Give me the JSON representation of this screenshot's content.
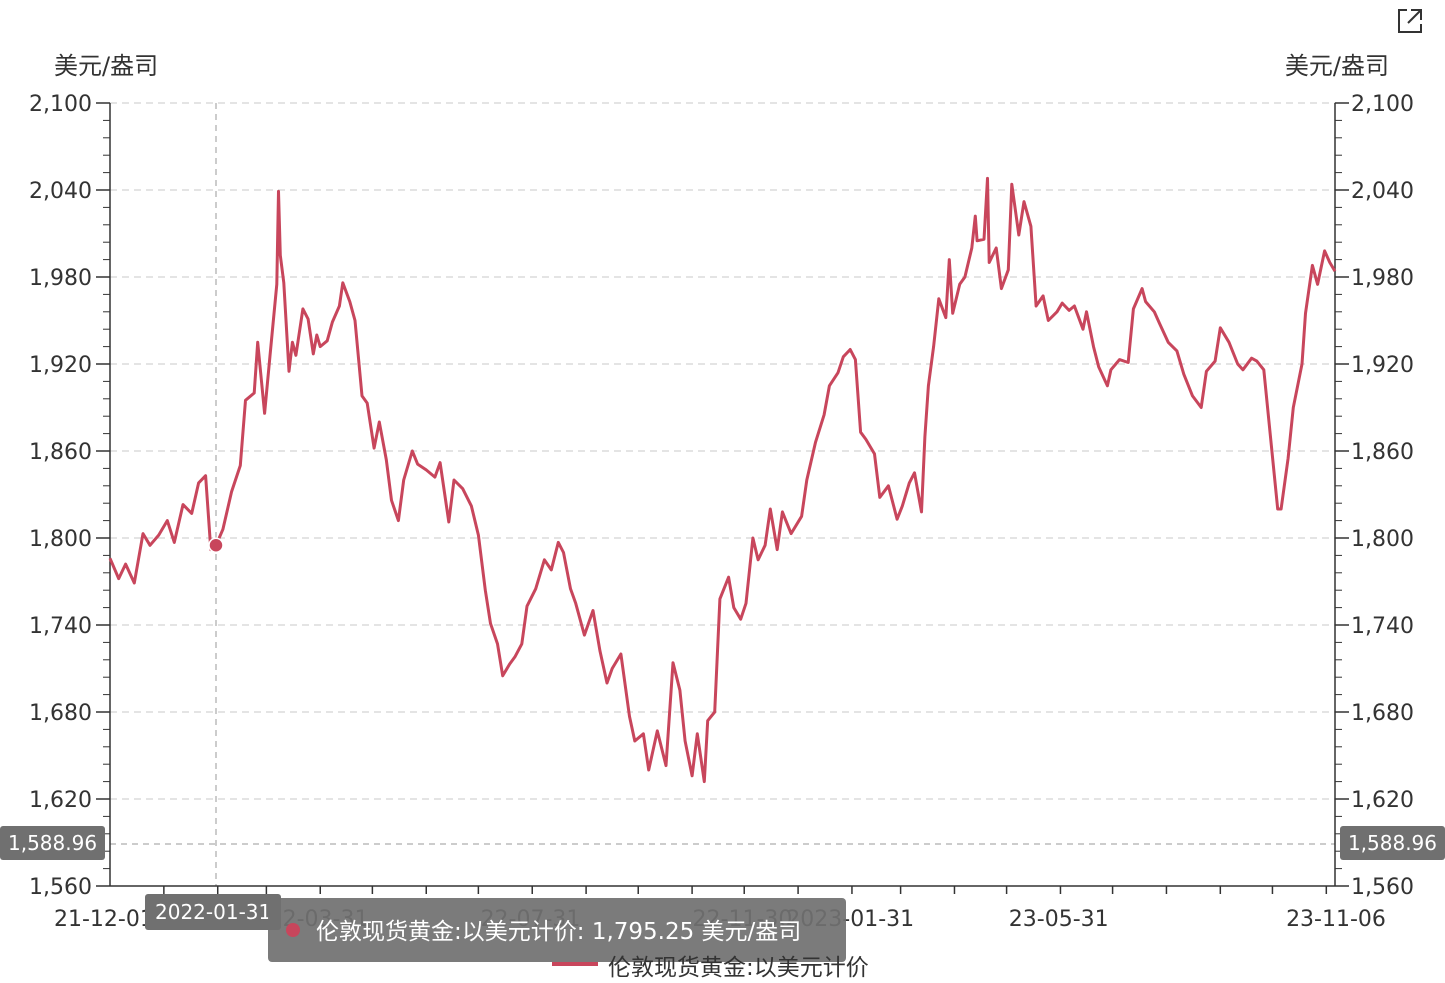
{
  "header": {
    "unit_left": "美元/盎司",
    "unit_right": "美元/盎司",
    "export_icon": "external-link-icon"
  },
  "tooltip": {
    "date": "2022-01-31",
    "series_name": "伦敦现货黄金:以美元计价",
    "value_text": "1,795.25",
    "unit": "美元/盎司"
  },
  "axis_pointer": {
    "value_label": "1,588.96"
  },
  "legend": {
    "label": "伦敦现货黄金:以美元计价"
  },
  "colors": {
    "series": "#c8465c",
    "grid": "#dcdcdc",
    "axis": "#333333"
  },
  "chart_data": {
    "type": "line",
    "title": "",
    "xlabel": "",
    "ylabel": "美元/盎司",
    "ylim": [
      1560,
      2100
    ],
    "y_ticks": [
      1560,
      1620,
      1680,
      1740,
      1800,
      1860,
      1920,
      1980,
      2040,
      2100
    ],
    "y_tick_labels": [
      "1,560",
      "1,620",
      "1,680",
      "1,740",
      "1,800",
      "1,860",
      "1,920",
      "1,980",
      "2,040",
      "2,100"
    ],
    "x_tick_labels": [
      {
        "date": "2021-12-01",
        "label": "21-12-01"
      },
      {
        "date": "2022-03-31",
        "label": "22-03-31"
      },
      {
        "date": "2022-07-31",
        "label": "22-07-31"
      },
      {
        "date": "2022-11-30",
        "label": "22-11-30"
      },
      {
        "date": "2023-01-31",
        "label": "2023-01-31"
      },
      {
        "date": "2023-05-31",
        "label": "23-05-31"
      },
      {
        "date": "2023-11-06",
        "label": "23-11-06"
      }
    ],
    "x_range": [
      "2021-12-01",
      "2023-11-06"
    ],
    "axis_pointer": {
      "date": "2022-01-31",
      "value": 1588.96
    },
    "series": [
      {
        "name": "伦敦现货黄金:以美元计价",
        "points": [
          [
            "2021-12-01",
            1786
          ],
          [
            "2021-12-06",
            1772
          ],
          [
            "2021-12-10",
            1782
          ],
          [
            "2021-12-15",
            1769
          ],
          [
            "2021-12-20",
            1803
          ],
          [
            "2021-12-24",
            1795
          ],
          [
            "2021-12-29",
            1802
          ],
          [
            "2022-01-03",
            1812
          ],
          [
            "2022-01-07",
            1797
          ],
          [
            "2022-01-12",
            1823
          ],
          [
            "2022-01-17",
            1817
          ],
          [
            "2022-01-21",
            1838
          ],
          [
            "2022-01-25",
            1843
          ],
          [
            "2022-01-28",
            1792
          ],
          [
            "2022-01-31",
            1795
          ],
          [
            "2022-02-04",
            1806
          ],
          [
            "2022-02-09",
            1832
          ],
          [
            "2022-02-14",
            1850
          ],
          [
            "2022-02-17",
            1895
          ],
          [
            "2022-02-22",
            1900
          ],
          [
            "2022-02-24",
            1935
          ],
          [
            "2022-02-28",
            1886
          ],
          [
            "2022-03-03",
            1925
          ],
          [
            "2022-03-07",
            1975
          ],
          [
            "2022-03-08",
            2039
          ],
          [
            "2022-03-09",
            1995
          ],
          [
            "2022-03-11",
            1976
          ],
          [
            "2022-03-14",
            1915
          ],
          [
            "2022-03-16",
            1935
          ],
          [
            "2022-03-18",
            1926
          ],
          [
            "2022-03-22",
            1958
          ],
          [
            "2022-03-25",
            1951
          ],
          [
            "2022-03-28",
            1927
          ],
          [
            "2022-03-30",
            1940
          ],
          [
            "2022-04-01",
            1932
          ],
          [
            "2022-04-05",
            1936
          ],
          [
            "2022-04-08",
            1949
          ],
          [
            "2022-04-12",
            1960
          ],
          [
            "2022-04-14",
            1976
          ],
          [
            "2022-04-18",
            1963
          ],
          [
            "2022-04-21",
            1950
          ],
          [
            "2022-04-25",
            1898
          ],
          [
            "2022-04-28",
            1893
          ],
          [
            "2022-05-02",
            1862
          ],
          [
            "2022-05-05",
            1880
          ],
          [
            "2022-05-09",
            1854
          ],
          [
            "2022-05-12",
            1826
          ],
          [
            "2022-05-16",
            1812
          ],
          [
            "2022-05-19",
            1840
          ],
          [
            "2022-05-24",
            1860
          ],
          [
            "2022-05-27",
            1851
          ],
          [
            "2022-06-01",
            1847
          ],
          [
            "2022-06-06",
            1842
          ],
          [
            "2022-06-09",
            1852
          ],
          [
            "2022-06-14",
            1811
          ],
          [
            "2022-06-17",
            1840
          ],
          [
            "2022-06-22",
            1834
          ],
          [
            "2022-06-27",
            1822
          ],
          [
            "2022-07-01",
            1802
          ],
          [
            "2022-07-05",
            1764
          ],
          [
            "2022-07-08",
            1741
          ],
          [
            "2022-07-12",
            1727
          ],
          [
            "2022-07-15",
            1705
          ],
          [
            "2022-07-19",
            1713
          ],
          [
            "2022-07-22",
            1718
          ],
          [
            "2022-07-26",
            1727
          ],
          [
            "2022-07-29",
            1753
          ],
          [
            "2022-08-03",
            1765
          ],
          [
            "2022-08-08",
            1785
          ],
          [
            "2022-08-12",
            1778
          ],
          [
            "2022-08-16",
            1797
          ],
          [
            "2022-08-19",
            1790
          ],
          [
            "2022-08-23",
            1765
          ],
          [
            "2022-08-26",
            1755
          ],
          [
            "2022-08-31",
            1733
          ],
          [
            "2022-09-05",
            1750
          ],
          [
            "2022-09-09",
            1722
          ],
          [
            "2022-09-13",
            1700
          ],
          [
            "2022-09-16",
            1710
          ],
          [
            "2022-09-21",
            1720
          ],
          [
            "2022-09-26",
            1677
          ],
          [
            "2022-09-29",
            1660
          ],
          [
            "2022-10-04",
            1665
          ],
          [
            "2022-10-07",
            1640
          ],
          [
            "2022-10-12",
            1667
          ],
          [
            "2022-10-17",
            1643
          ],
          [
            "2022-10-21",
            1714
          ],
          [
            "2022-10-25",
            1695
          ],
          [
            "2022-10-28",
            1660
          ],
          [
            "2022-11-01",
            1636
          ],
          [
            "2022-11-04",
            1665
          ],
          [
            "2022-11-08",
            1632
          ],
          [
            "2022-11-10",
            1674
          ],
          [
            "2022-11-14",
            1680
          ],
          [
            "2022-11-17",
            1758
          ],
          [
            "2022-11-22",
            1773
          ],
          [
            "2022-11-25",
            1752
          ],
          [
            "2022-11-29",
            1744
          ],
          [
            "2022-12-02",
            1755
          ],
          [
            "2022-12-06",
            1800
          ],
          [
            "2022-12-09",
            1785
          ],
          [
            "2022-12-13",
            1795
          ],
          [
            "2022-12-16",
            1820
          ],
          [
            "2022-12-20",
            1792
          ],
          [
            "2022-12-23",
            1818
          ],
          [
            "2022-12-28",
            1803
          ],
          [
            "2023-01-03",
            1815
          ],
          [
            "2023-01-06",
            1840
          ],
          [
            "2023-01-11",
            1866
          ],
          [
            "2023-01-16",
            1885
          ],
          [
            "2023-01-19",
            1905
          ],
          [
            "2023-01-24",
            1914
          ],
          [
            "2023-01-27",
            1925
          ],
          [
            "2023-01-31",
            1930
          ],
          [
            "2023-02-03",
            1923
          ],
          [
            "2023-02-06",
            1873
          ],
          [
            "2023-02-09",
            1868
          ],
          [
            "2023-02-14",
            1858
          ],
          [
            "2023-02-17",
            1828
          ],
          [
            "2023-02-22",
            1836
          ],
          [
            "2023-02-27",
            1813
          ],
          [
            "2023-03-02",
            1822
          ],
          [
            "2023-03-06",
            1838
          ],
          [
            "2023-03-09",
            1845
          ],
          [
            "2023-03-13",
            1818
          ],
          [
            "2023-03-15",
            1870
          ],
          [
            "2023-03-17",
            1905
          ],
          [
            "2023-03-20",
            1932
          ],
          [
            "2023-03-23",
            1965
          ],
          [
            "2023-03-27",
            1952
          ],
          [
            "2023-03-29",
            1992
          ],
          [
            "2023-03-31",
            1955
          ],
          [
            "2023-04-04",
            1975
          ],
          [
            "2023-04-07",
            1980
          ],
          [
            "2023-04-11",
            2000
          ],
          [
            "2023-04-13",
            2022
          ],
          [
            "2023-04-14",
            2005
          ],
          [
            "2023-04-18",
            2006
          ],
          [
            "2023-04-20",
            2048
          ],
          [
            "2023-04-21",
            1990
          ],
          [
            "2023-04-25",
            2000
          ],
          [
            "2023-04-28",
            1972
          ],
          [
            "2023-05-02",
            1985
          ],
          [
            "2023-05-04",
            2044
          ],
          [
            "2023-05-08",
            2009
          ],
          [
            "2023-05-11",
            2032
          ],
          [
            "2023-05-15",
            2015
          ],
          [
            "2023-05-18",
            1960
          ],
          [
            "2023-05-22",
            1967
          ],
          [
            "2023-05-25",
            1950
          ],
          [
            "2023-05-30",
            1956
          ],
          [
            "2023-06-02",
            1962
          ],
          [
            "2023-06-06",
            1957
          ],
          [
            "2023-06-09",
            1960
          ],
          [
            "2023-06-14",
            1944
          ],
          [
            "2023-06-16",
            1956
          ],
          [
            "2023-06-20",
            1932
          ],
          [
            "2023-06-23",
            1918
          ],
          [
            "2023-06-28",
            1905
          ],
          [
            "2023-06-30",
            1916
          ],
          [
            "2023-07-05",
            1923
          ],
          [
            "2023-07-10",
            1921
          ],
          [
            "2023-07-13",
            1958
          ],
          [
            "2023-07-18",
            1972
          ],
          [
            "2023-07-20",
            1963
          ],
          [
            "2023-07-25",
            1956
          ],
          [
            "2023-07-28",
            1948
          ],
          [
            "2023-08-02",
            1935
          ],
          [
            "2023-08-07",
            1929
          ],
          [
            "2023-08-11",
            1913
          ],
          [
            "2023-08-16",
            1898
          ],
          [
            "2023-08-21",
            1890
          ],
          [
            "2023-08-24",
            1915
          ],
          [
            "2023-08-29",
            1922
          ],
          [
            "2023-09-01",
            1945
          ],
          [
            "2023-09-06",
            1935
          ],
          [
            "2023-09-11",
            1920
          ],
          [
            "2023-09-14",
            1916
          ],
          [
            "2023-09-19",
            1924
          ],
          [
            "2023-09-22",
            1922
          ],
          [
            "2023-09-26",
            1916
          ],
          [
            "2023-09-29",
            1880
          ],
          [
            "2023-10-04",
            1820
          ],
          [
            "2023-10-06",
            1820
          ],
          [
            "2023-10-10",
            1855
          ],
          [
            "2023-10-13",
            1890
          ],
          [
            "2023-10-18",
            1920
          ],
          [
            "2023-10-20",
            1955
          ],
          [
            "2023-10-24",
            1988
          ],
          [
            "2023-10-27",
            1975
          ],
          [
            "2023-10-31",
            1998
          ],
          [
            "2023-11-03",
            1990
          ],
          [
            "2023-11-06",
            1984
          ]
        ]
      }
    ]
  }
}
